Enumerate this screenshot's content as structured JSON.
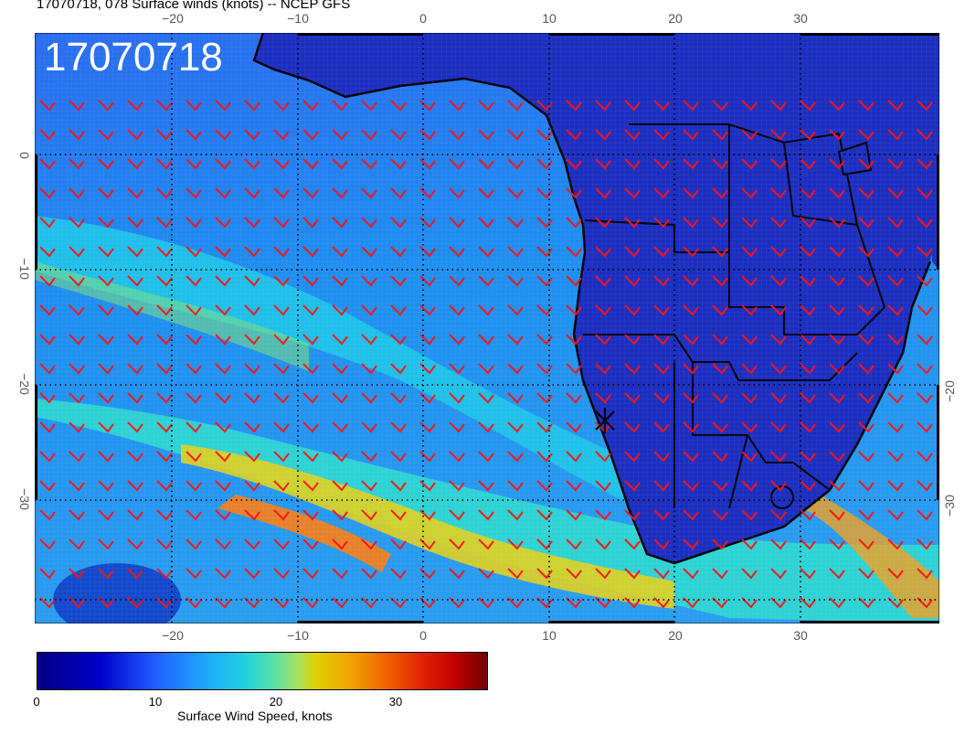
{
  "title": "17070718, 078 Surface winds (knots) -- NCEP GFS",
  "stamp": "17070718",
  "lon_ticks": [
    "−20",
    "−10",
    "0",
    "10",
    "20",
    "30"
  ],
  "lat_ticks": [
    "0",
    "−10",
    "−20",
    "−30"
  ],
  "colorbar": {
    "label": "Surface Wind Speed, knots",
    "ticks": [
      "0",
      "10",
      "20",
      "30"
    ]
  },
  "colors": {
    "barb": "#ff1010",
    "land_outline": "#000000",
    "frame": "#000000"
  }
}
